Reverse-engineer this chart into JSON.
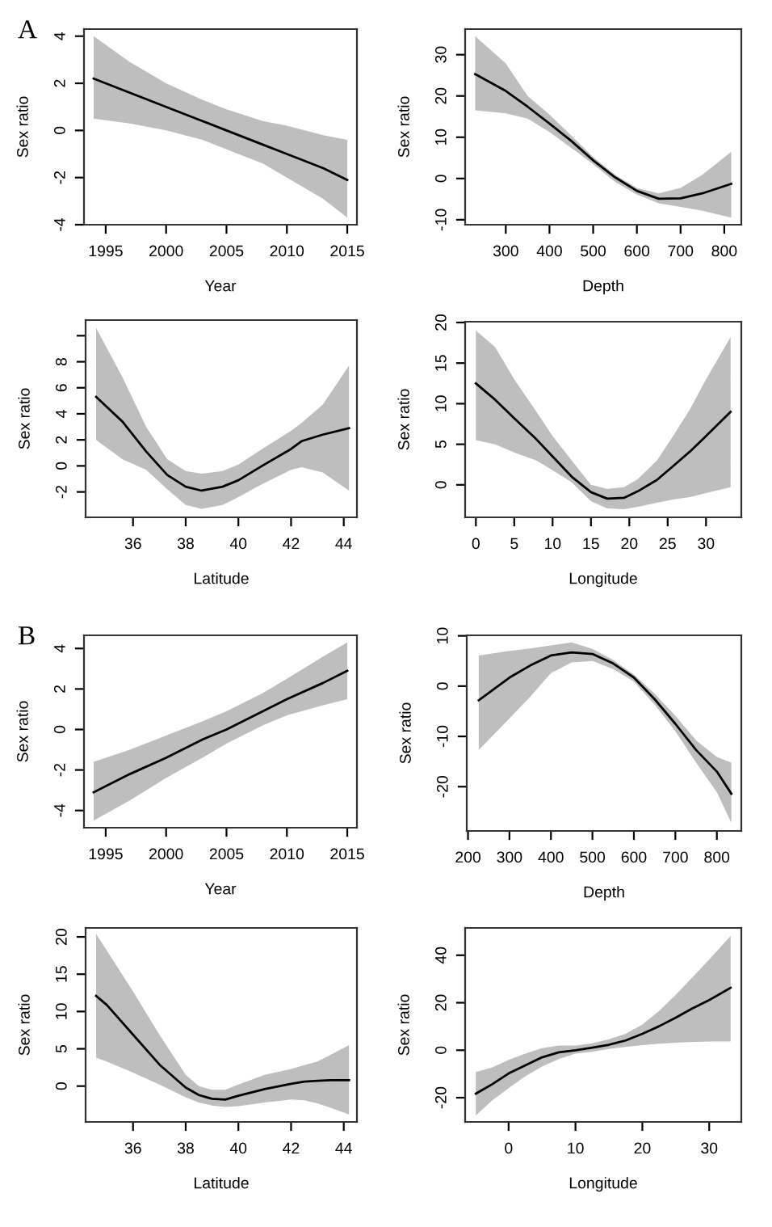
{
  "chart_data": [
    {
      "type": "line",
      "annotations": [
        "A"
      ],
      "xlabel": "Year",
      "ylabel": "Sex ratio",
      "x": [
        1994,
        1997,
        2000,
        2003,
        2005,
        2008,
        2010,
        2013,
        2015
      ],
      "series": [
        {
          "color": "#000000",
          "values": [
            2.2,
            1.6,
            1.0,
            0.4,
            0.0,
            -0.6,
            -1.0,
            -1.6,
            -2.1
          ],
          "upper": [
            4.0,
            2.9,
            2.0,
            1.3,
            0.9,
            0.4,
            0.2,
            -0.2,
            -0.4
          ],
          "lower": [
            0.5,
            0.3,
            0.0,
            -0.4,
            -0.8,
            -1.4,
            -2.0,
            -2.9,
            -3.7
          ]
        }
      ],
      "xlim": [
        1993.2,
        2015.8
      ],
      "ylim": [
        -4.0,
        4.3
      ],
      "xticks": [
        1995,
        2000,
        2005,
        2010,
        2015
      ],
      "yticks": [
        -4,
        -2,
        0,
        2,
        4
      ]
    },
    {
      "type": "line",
      "xlabel": "Depth",
      "ylabel": "Sex ratio",
      "x": [
        230,
        300,
        350,
        400,
        450,
        500,
        550,
        600,
        650,
        700,
        750,
        816
      ],
      "series": [
        {
          "color": "#000000",
          "values": [
            25.3,
            21.2,
            17.4,
            13.3,
            9.1,
            4.4,
            0.3,
            -3.0,
            -4.9,
            -4.8,
            -3.6,
            -1.3
          ],
          "upper": [
            34.5,
            27.9,
            20.0,
            15.5,
            10.4,
            5.2,
            0.9,
            -2.3,
            -3.6,
            -2.3,
            0.9,
            6.5
          ],
          "lower": [
            16.5,
            15.8,
            14.5,
            11.3,
            7.4,
            3.5,
            -0.8,
            -3.9,
            -6.0,
            -6.9,
            -7.8,
            -9.5
          ]
        }
      ],
      "xlim": [
        207,
        839
      ],
      "ylim": [
        -11.2,
        36.2
      ],
      "xticks": [
        300,
        400,
        500,
        600,
        700,
        800
      ],
      "yticks": [
        -10,
        0,
        10,
        20,
        30
      ]
    },
    {
      "type": "line",
      "xlabel": "Latitude",
      "ylabel": "Sex ratio",
      "x": [
        34.6,
        35.6,
        36.5,
        37.3,
        38,
        38.6,
        39.4,
        40,
        40.9,
        42,
        42.4,
        43.2,
        44.2
      ],
      "series": [
        {
          "color": "#000000",
          "values": [
            5.3,
            3.4,
            1.1,
            -0.7,
            -1.6,
            -1.9,
            -1.6,
            -1.1,
            0.0,
            1.3,
            1.9,
            2.4,
            2.9
          ],
          "upper": [
            10.6,
            6.8,
            3.0,
            0.5,
            -0.4,
            -0.6,
            -0.4,
            0.1,
            1.3,
            2.7,
            3.3,
            4.7,
            7.7
          ],
          "lower": [
            2.0,
            0.5,
            -0.3,
            -1.8,
            -3.0,
            -3.3,
            -3.0,
            -2.4,
            -1.4,
            -0.3,
            -0.1,
            -0.5,
            -1.9
          ]
        }
      ],
      "xlim": [
        34.2,
        44.5
      ],
      "ylim": [
        -3.95,
        11.2
      ],
      "xticks": [
        36,
        38,
        40,
        42,
        44
      ],
      "yticks": [
        -2,
        0,
        2,
        4,
        6,
        8,
        {
          "value": 10,
          "label": null
        }
      ]
    },
    {
      "type": "line",
      "xlabel": "Longitude",
      "ylabel": "Sex ratio",
      "x": [
        0,
        2.5,
        5,
        7.9,
        10,
        12.5,
        15,
        17.1,
        19.3,
        21.1,
        23.6,
        25.7,
        27.9,
        30,
        33.2
      ],
      "series": [
        {
          "color": "#000000",
          "values": [
            12.5,
            10.5,
            8.2,
            5.6,
            3.5,
            1.0,
            -0.9,
            -1.7,
            -1.6,
            -0.8,
            0.6,
            2.3,
            4.1,
            6.0,
            9.0
          ],
          "upper": [
            19.0,
            17.0,
            13.0,
            9.0,
            6.0,
            3.0,
            0.0,
            -0.5,
            -0.3,
            0.7,
            3.0,
            6.0,
            9.3,
            13.0,
            18.2
          ],
          "lower": [
            5.5,
            5.0,
            4.0,
            3.0,
            1.8,
            0.3,
            -2.0,
            -2.9,
            -3.0,
            -2.7,
            -2.2,
            -1.8,
            -1.5,
            -1.0,
            -0.3
          ]
        }
      ],
      "xlim": [
        -1.4,
        34.6
      ],
      "ylim": [
        -4.0,
        20.1
      ],
      "xticks": [
        0,
        5,
        10,
        15,
        20,
        25,
        30
      ],
      "yticks": [
        0,
        5,
        10,
        15,
        20
      ]
    },
    {
      "type": "line",
      "annotations": [
        "B"
      ],
      "xlabel": "Year",
      "ylabel": "Sex ratio",
      "x": [
        1994,
        1997,
        2000,
        2003,
        2005,
        2008,
        2010,
        2013,
        2015
      ],
      "series": [
        {
          "color": "#000000",
          "values": [
            -3.1,
            -2.2,
            -1.4,
            -0.5,
            0.0,
            0.9,
            1.5,
            2.3,
            2.9
          ],
          "upper": [
            -1.6,
            -1.0,
            -0.3,
            0.4,
            0.9,
            1.8,
            2.5,
            3.6,
            4.3
          ],
          "lower": [
            -4.5,
            -3.5,
            -2.4,
            -1.4,
            -0.7,
            0.2,
            0.7,
            1.2,
            1.5
          ]
        }
      ],
      "xlim": [
        1993.2,
        2015.8
      ],
      "ylim": [
        -4.85,
        4.65
      ],
      "xticks": [
        1995,
        2000,
        2005,
        2010,
        2015
      ],
      "yticks": [
        -4,
        -2,
        0,
        2,
        4
      ]
    },
    {
      "type": "line",
      "xlabel": "Depth",
      "ylabel": "Sex ratio",
      "x": [
        226,
        300,
        350,
        400,
        450,
        500,
        550,
        600,
        650,
        700,
        750,
        800,
        835
      ],
      "series": [
        {
          "color": "#000000",
          "values": [
            -2.8,
            1.7,
            4.1,
            6.1,
            6.7,
            6.4,
            4.5,
            1.7,
            -2.6,
            -7.5,
            -12.7,
            -17.0,
            -21.4
          ],
          "upper": [
            6.1,
            7.0,
            7.5,
            8.1,
            8.7,
            7.4,
            5.2,
            2.3,
            -1.5,
            -5.9,
            -10.8,
            -14.1,
            -15.2
          ],
          "lower": [
            -12.7,
            -6.4,
            -2.1,
            2.6,
            4.7,
            5.0,
            3.4,
            0.9,
            -3.7,
            -9.0,
            -15.2,
            -21.1,
            -27.2
          ]
        }
      ],
      "xlim": [
        197,
        859
      ],
      "ylim": [
        -28.8,
        10.1
      ],
      "xticks": [
        200,
        300,
        400,
        500,
        600,
        700,
        800
      ],
      "yticks": [
        -20,
        -10,
        0,
        10
      ]
    },
    {
      "type": "line",
      "xlabel": "Latitude",
      "ylabel": "Sex ratio",
      "x": [
        34.6,
        35,
        36,
        37,
        38,
        38.5,
        39,
        39.5,
        40,
        41,
        42,
        42.5,
        43,
        43.5,
        44.2
      ],
      "series": [
        {
          "color": "#000000",
          "values": [
            12.1,
            10.9,
            6.9,
            2.9,
            -0.2,
            -1.2,
            -1.7,
            -1.8,
            -1.3,
            -0.4,
            0.3,
            0.6,
            0.7,
            0.8,
            0.8
          ],
          "upper": [
            20.4,
            18.2,
            12.7,
            6.9,
            1.5,
            0.0,
            -0.5,
            -0.5,
            0.2,
            1.5,
            2.3,
            2.8,
            3.3,
            4.2,
            5.5
          ],
          "lower": [
            3.8,
            3.3,
            1.8,
            0.2,
            -1.5,
            -2.2,
            -2.6,
            -2.8,
            -2.7,
            -2.2,
            -1.8,
            -1.9,
            -2.3,
            -2.9,
            -3.8
          ]
        }
      ],
      "xlim": [
        34.2,
        44.5
      ],
      "ylim": [
        -4.8,
        21.2
      ],
      "xticks": [
        36,
        38,
        40,
        42,
        44
      ],
      "yticks": [
        0,
        5,
        10,
        15,
        20
      ]
    },
    {
      "type": "line",
      "xlabel": "Longitude",
      "ylabel": "Sex ratio",
      "x": [
        -4.9,
        -2.5,
        0,
        2.5,
        5,
        7.5,
        10,
        12.5,
        15,
        17.5,
        20,
        22.5,
        25,
        27.5,
        30,
        33.2
      ],
      "series": [
        {
          "color": "#000000",
          "values": [
            -18.3,
            -14.4,
            -9.8,
            -6.4,
            -3.0,
            -0.9,
            0.0,
            1.1,
            2.3,
            4.1,
            6.9,
            10.1,
            13.7,
            17.6,
            21.1,
            26.3
          ],
          "upper": [
            -9.2,
            -7.3,
            -4.1,
            -1.4,
            0.9,
            2.0,
            2.0,
            2.9,
            4.6,
            6.9,
            10.8,
            16.5,
            23.3,
            30.7,
            38.2,
            48.1
          ],
          "lower": [
            -27.5,
            -21.3,
            -16.0,
            -11.0,
            -6.9,
            -3.7,
            -1.4,
            -0.7,
            0.5,
            1.4,
            2.1,
            2.7,
            3.2,
            3.5,
            3.7,
            3.7
          ]
        }
      ],
      "xlim": [
        -6.5,
        34.8
      ],
      "ylim": [
        -30.2,
        51.5
      ],
      "xticks": [
        0,
        10,
        20,
        30
      ],
      "yticks": [
        -20,
        0,
        20,
        40
      ]
    }
  ]
}
